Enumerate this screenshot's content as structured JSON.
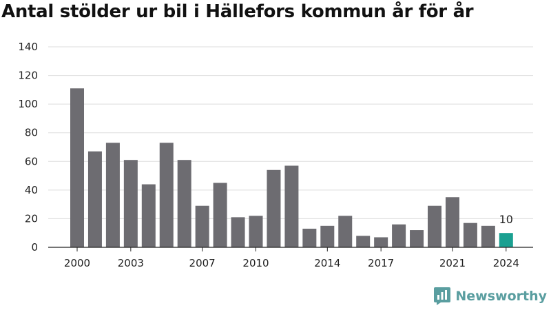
{
  "title": "Antal stölder ur bil i Hällefors kommun år för år",
  "brand": {
    "name": "Newsworthy",
    "icon": "newsworthy-logo-icon",
    "color": "#5a9ea0"
  },
  "chart_data": {
    "type": "bar",
    "title": "Antal stölder ur bil i Hällefors kommun år för år",
    "categories": [
      "2000",
      "2001",
      "2002",
      "2003",
      "2004",
      "2005",
      "2006",
      "2007",
      "2008",
      "2009",
      "2010",
      "2011",
      "2012",
      "2013",
      "2014",
      "2015",
      "2016",
      "2017",
      "2018",
      "2019",
      "2020",
      "2021",
      "2022",
      "2023",
      "2024"
    ],
    "values": [
      111,
      67,
      73,
      61,
      44,
      73,
      61,
      29,
      45,
      21,
      22,
      54,
      57,
      13,
      15,
      22,
      8,
      7,
      16,
      12,
      29,
      35,
      17,
      15,
      10
    ],
    "x_tick_labels": [
      "2000",
      "2003",
      "2007",
      "2010",
      "2014",
      "2017",
      "2021",
      "2024"
    ],
    "ylim": [
      0,
      140
    ],
    "y_ticks": [
      0,
      20,
      40,
      60,
      80,
      100,
      120,
      140
    ],
    "highlight": {
      "category": "2024",
      "label": "10"
    },
    "grid": true,
    "colors": {
      "bar": "#6d6c71",
      "highlight": "#1aa091",
      "grid": "#dddddd",
      "axis": "#222222"
    },
    "xlabel": "",
    "ylabel": ""
  }
}
